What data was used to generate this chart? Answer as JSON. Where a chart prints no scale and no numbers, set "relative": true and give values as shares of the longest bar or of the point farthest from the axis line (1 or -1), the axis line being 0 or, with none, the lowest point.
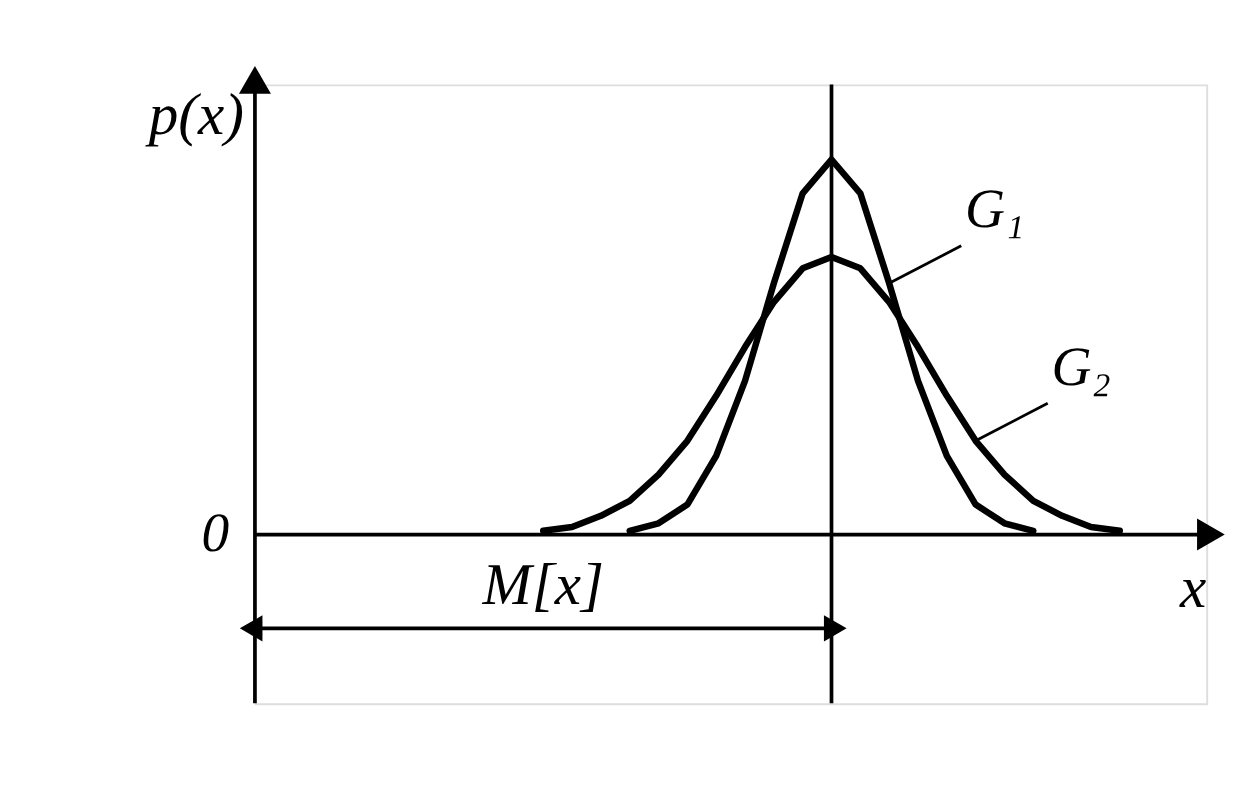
{
  "chart_data": {
    "type": "line",
    "relative": true,
    "xlabel": "x",
    "ylabel": "p(x)",
    "tick_labels": false,
    "marker": "none",
    "line_style": "solid",
    "categories": [
      null,
      null,
      null,
      null,
      null,
      null,
      null,
      null,
      null,
      null,
      null,
      null,
      null,
      null,
      null,
      null,
      null,
      null,
      null,
      null,
      null,
      null,
      null,
      null,
      null,
      null,
      null,
      null,
      null,
      null,
      null,
      null,
      null
    ],
    "series": [
      {
        "name": "G₁",
        "color": "#000000",
        "values": [
          null,
          null,
          null,
          null,
          null,
          null,
          null,
          null,
          null,
          null,
          null,
          null,
          null,
          0.01,
          0.03,
          0.08,
          0.21,
          0.41,
          0.67,
          0.91,
          1.0,
          0.91,
          0.67,
          0.41,
          0.21,
          0.08,
          0.03,
          0.01,
          null,
          null,
          null,
          null,
          null
        ]
      },
      {
        "name": "G₂",
        "color": "#000000",
        "values": [
          null,
          null,
          null,
          null,
          null,
          null,
          null,
          null,
          null,
          null,
          0.01,
          0.02,
          0.05,
          0.09,
          0.16,
          0.25,
          0.37,
          0.5,
          0.62,
          0.71,
          0.74,
          0.71,
          0.62,
          0.5,
          0.37,
          0.25,
          0.16,
          0.09,
          0.05,
          0.02,
          0.01,
          null,
          null
        ]
      }
    ],
    "annotations": [
      "0",
      "M[x]"
    ]
  }
}
